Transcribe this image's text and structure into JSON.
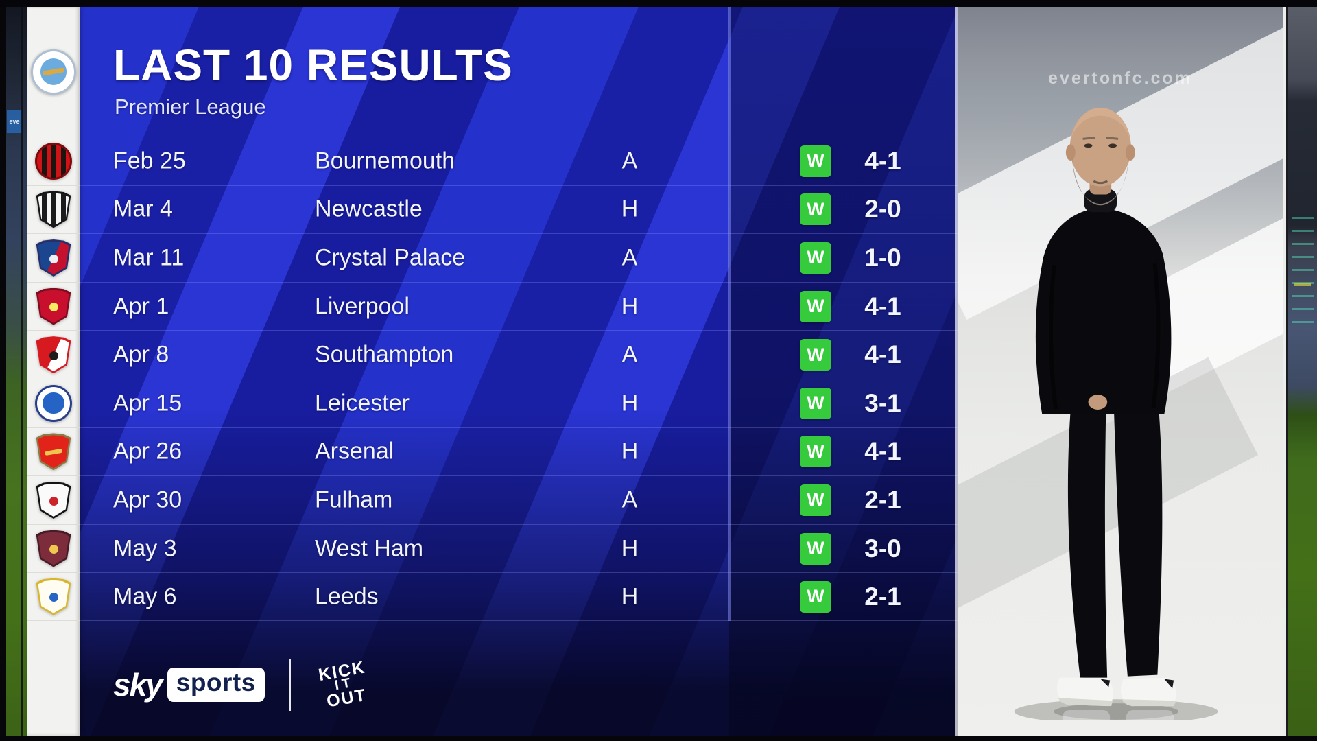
{
  "header": {
    "title": "LAST 10 RESULTS",
    "subtitle": "Premier League"
  },
  "team": "Manchester City",
  "results": [
    {
      "date": "Feb 25",
      "opponent": "Bournemouth",
      "venue": "A",
      "result": "W",
      "score": "4-1",
      "badge": "bournemouth"
    },
    {
      "date": "Mar 4",
      "opponent": "Newcastle",
      "venue": "H",
      "result": "W",
      "score": "2-0",
      "badge": "newcastle"
    },
    {
      "date": "Mar 11",
      "opponent": "Crystal Palace",
      "venue": "A",
      "result": "W",
      "score": "1-0",
      "badge": "crystal-palace"
    },
    {
      "date": "Apr 1",
      "opponent": "Liverpool",
      "venue": "H",
      "result": "W",
      "score": "4-1",
      "badge": "liverpool"
    },
    {
      "date": "Apr 8",
      "opponent": "Southampton",
      "venue": "A",
      "result": "W",
      "score": "4-1",
      "badge": "southampton"
    },
    {
      "date": "Apr 15",
      "opponent": "Leicester",
      "venue": "H",
      "result": "W",
      "score": "3-1",
      "badge": "leicester"
    },
    {
      "date": "Apr 26",
      "opponent": "Arsenal",
      "venue": "H",
      "result": "W",
      "score": "4-1",
      "badge": "arsenal"
    },
    {
      "date": "Apr 30",
      "opponent": "Fulham",
      "venue": "A",
      "result": "W",
      "score": "2-1",
      "badge": "fulham"
    },
    {
      "date": "May 3",
      "opponent": "West Ham",
      "venue": "H",
      "result": "W",
      "score": "3-0",
      "badge": "west-ham"
    },
    {
      "date": "May 6",
      "opponent": "Leeds",
      "venue": "H",
      "result": "W",
      "score": "2-1",
      "badge": "leeds"
    }
  ],
  "footer": {
    "sky_label": "sky",
    "sports_label": "sports",
    "kick_it_out_lines": [
      "KICK",
      "IT",
      "OUT"
    ]
  },
  "photo": {
    "watermark": "evertonfc.com",
    "left_strip_sign": "eve"
  },
  "colors": {
    "win_green": "#35cb3d",
    "board_blue": "#1d23b5",
    "board_blue_light": "#2a35d4",
    "board_blue_dark": "#181da0",
    "board_bottom": "#0b0c32",
    "results_column_shade": "#0b0e46",
    "rail_white": "#f2f2f0",
    "divider": "#8b93e8",
    "pitch_green": "#447018",
    "sky_text_navy": "#12214d"
  },
  "badges": {
    "manchester-city": {
      "shape": "circle",
      "ring": "#aebfd2",
      "fill": "solid",
      "colors": [
        "#ffffff"
      ],
      "inner": "#6cabdd",
      "emblem": "#d9a944",
      "emblem_shape": "bar"
    },
    "bournemouth": {
      "shape": "circle",
      "ring": "#7e0a0c",
      "fill": "stripes",
      "colors": [
        "#cf1317",
        "#1b1410"
      ]
    },
    "newcastle": {
      "shape": "shield",
      "ring": "#17171a",
      "fill": "stripes",
      "colors": [
        "#f5f5f5",
        "#1b1b1e"
      ]
    },
    "crystal-palace": {
      "shape": "shield",
      "ring": "#272f6b",
      "fill": "half",
      "colors": [
        "#1b458f",
        "#c4122e"
      ],
      "emblem": "#eef0f6"
    },
    "liverpool": {
      "shape": "shield",
      "ring": "#7e0d20",
      "fill": "solid",
      "colors": [
        "#c8102e"
      ],
      "emblem": "#f6eb61"
    },
    "southampton": {
      "shape": "shield",
      "ring": "#d71920",
      "fill": "half",
      "colors": [
        "#d71920",
        "#ffffff"
      ],
      "emblem": "#1d1d1d"
    },
    "leicester": {
      "shape": "circle",
      "ring": "#273e8a",
      "fill": "solid",
      "colors": [
        "#ffffff"
      ],
      "inner": "#2563c4"
    },
    "arsenal": {
      "shape": "shield",
      "ring": "#8d7b46",
      "fill": "solid",
      "colors": [
        "#e2231a"
      ],
      "emblem": "#ecc64e",
      "emblem_shape": "bar"
    },
    "fulham": {
      "shape": "shield",
      "ring": "#141414",
      "fill": "solid",
      "colors": [
        "#fafafa"
      ],
      "emblem": "#cc2229"
    },
    "west-ham": {
      "shape": "shield",
      "ring": "#471b28",
      "fill": "solid",
      "colors": [
        "#7c2c3b"
      ],
      "emblem": "#efc64f"
    },
    "leeds": {
      "shape": "shield",
      "ring": "#d9b52a",
      "fill": "solid",
      "colors": [
        "#fffdf2"
      ],
      "emblem": "#2563c4"
    }
  }
}
